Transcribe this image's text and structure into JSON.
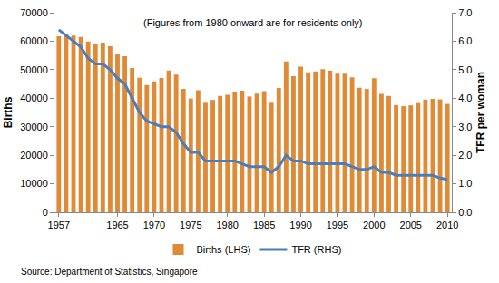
{
  "chart_data": {
    "type": "bar",
    "annotation": "(Figures from 1980 onward are for residents only)",
    "source": "Source: Department of Statistics, Singapore",
    "ylabel": "Births",
    "y2label": "TFR per woman",
    "x": [
      1957,
      1958,
      1959,
      1960,
      1961,
      1962,
      1963,
      1964,
      1965,
      1966,
      1967,
      1968,
      1969,
      1970,
      1971,
      1972,
      1973,
      1974,
      1975,
      1976,
      1977,
      1978,
      1979,
      1980,
      1981,
      1982,
      1983,
      1984,
      1985,
      1986,
      1987,
      1988,
      1989,
      1990,
      1991,
      1992,
      1993,
      1994,
      1995,
      1996,
      1997,
      1998,
      1999,
      2000,
      2001,
      2002,
      2003,
      2004,
      2005,
      2006,
      2007,
      2008,
      2009,
      2010
    ],
    "series": [
      {
        "name": "Births (LHS)",
        "type": "bar",
        "color": "#e08a35",
        "values": [
          61700,
          62500,
          62000,
          61500,
          59900,
          58900,
          59500,
          58200,
          55700,
          54700,
          50600,
          47200,
          44600,
          45900,
          47100,
          49700,
          48300,
          43300,
          39900,
          42800,
          38400,
          39400,
          40800,
          41200,
          42300,
          42600,
          40600,
          41600,
          42500,
          38400,
          43600,
          52900,
          47700,
          51100,
          49100,
          49400,
          50200,
          49600,
          48600,
          48600,
          47300,
          43700,
          43300,
          47000,
          41500,
          40800,
          37600,
          37200,
          37500,
          38300,
          39500,
          39800,
          39600,
          38000
        ]
      },
      {
        "name": "TFR (RHS)",
        "type": "line",
        "color": "#4a7ebb",
        "axis": "y2",
        "values": [
          6.4,
          6.2,
          6.0,
          5.8,
          5.4,
          5.2,
          5.2,
          5.0,
          4.7,
          4.5,
          4.0,
          3.5,
          3.2,
          3.1,
          3.0,
          3.0,
          2.8,
          2.4,
          2.1,
          2.1,
          1.8,
          1.8,
          1.8,
          1.8,
          1.8,
          1.7,
          1.6,
          1.6,
          1.6,
          1.4,
          1.6,
          2.0,
          1.8,
          1.8,
          1.7,
          1.7,
          1.7,
          1.7,
          1.7,
          1.7,
          1.6,
          1.5,
          1.5,
          1.6,
          1.4,
          1.4,
          1.3,
          1.3,
          1.3,
          1.3,
          1.3,
          1.3,
          1.2,
          1.15
        ]
      }
    ],
    "xlim": [
      1956.4,
      2010.6
    ],
    "xticks": [
      1957,
      1965,
      1970,
      1975,
      1980,
      1985,
      1990,
      1995,
      2000,
      2005,
      2010
    ],
    "ylim": [
      0,
      70000
    ],
    "yticks": [
      0,
      10000,
      20000,
      30000,
      40000,
      50000,
      60000,
      70000
    ],
    "y2lim": [
      0,
      7
    ],
    "y2ticks": [
      {
        "value": 0,
        "label": "0.0"
      },
      {
        "value": 1,
        "label": "1.0"
      },
      {
        "value": 2,
        "label": "2.0"
      },
      {
        "value": 3,
        "label": "3.0"
      },
      {
        "value": 4,
        "label": "4.0"
      },
      {
        "value": 5,
        "label": "5.0"
      },
      {
        "value": 6,
        "label": "6.0"
      },
      {
        "value": 7,
        "label": "7.0"
      }
    ],
    "grid": false,
    "legend": "bottom",
    "data_labels": false
  }
}
